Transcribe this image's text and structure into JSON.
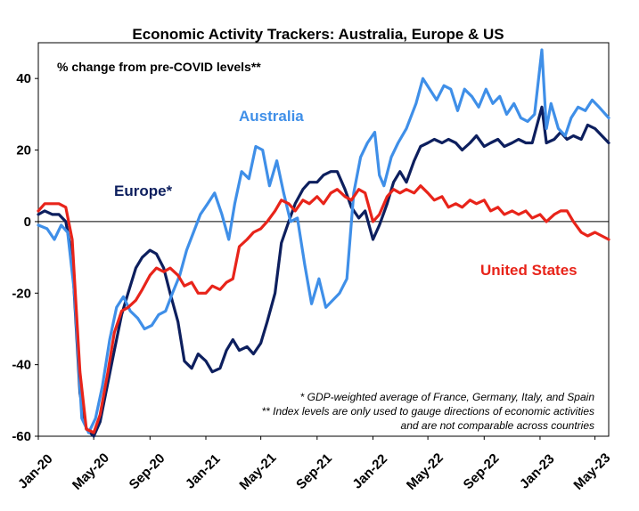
{
  "chart_data": {
    "type": "line",
    "title": "Economic Activity Trackers: Australia, Europe & US",
    "subtitle": "% change from pre-COVID levels**",
    "ylim": [
      -60,
      50
    ],
    "yticks": [
      "40",
      "20",
      "0",
      "-20",
      "-40",
      "-60"
    ],
    "ytick_values": [
      40,
      20,
      0,
      -20,
      -40,
      -60
    ],
    "xlim": [
      "2020-01-01",
      "2023-05-31"
    ],
    "xticks": [
      "Jan-20",
      "May-20",
      "Sep-20",
      "Jan-21",
      "May-21",
      "Sep-21",
      "Jan-22",
      "May-22",
      "Sep-22",
      "Jan-23",
      "May-23"
    ],
    "xtick_dates": [
      "2020-01-01",
      "2020-05-01",
      "2020-09-01",
      "2021-01-01",
      "2021-05-01",
      "2021-09-01",
      "2022-01-01",
      "2022-05-01",
      "2022-09-01",
      "2023-01-01",
      "2023-05-01"
    ],
    "grid": false,
    "notes": [
      "* GDP-weighted average of France, Germany, Italy, and Spain",
      "** Index levels are only used to gauge directions of economic activities",
      "and are not comparable across countries"
    ],
    "series": [
      {
        "name": "Australia",
        "color": "#3F8FE8",
        "points": [
          [
            "2020-01-01",
            -1
          ],
          [
            "2020-01-20",
            -2
          ],
          [
            "2020-02-05",
            -5
          ],
          [
            "2020-02-20",
            -1
          ],
          [
            "2020-03-05",
            -3
          ],
          [
            "2020-03-20",
            -20
          ],
          [
            "2020-04-05",
            -55
          ],
          [
            "2020-04-20",
            -59
          ],
          [
            "2020-05-05",
            -55
          ],
          [
            "2020-05-20",
            -46
          ],
          [
            "2020-06-05",
            -33
          ],
          [
            "2020-06-20",
            -24
          ],
          [
            "2020-07-05",
            -21
          ],
          [
            "2020-07-20",
            -25
          ],
          [
            "2020-08-05",
            -27
          ],
          [
            "2020-08-20",
            -30
          ],
          [
            "2020-09-05",
            -29
          ],
          [
            "2020-09-20",
            -26
          ],
          [
            "2020-10-05",
            -25
          ],
          [
            "2020-10-20",
            -20
          ],
          [
            "2020-11-05",
            -15
          ],
          [
            "2020-11-20",
            -8
          ],
          [
            "2020-12-05",
            -3
          ],
          [
            "2020-12-20",
            2
          ],
          [
            "2021-01-05",
            5
          ],
          [
            "2021-01-20",
            8
          ],
          [
            "2021-02-05",
            2
          ],
          [
            "2021-02-20",
            -5
          ],
          [
            "2021-03-05",
            5
          ],
          [
            "2021-03-20",
            14
          ],
          [
            "2021-04-05",
            12
          ],
          [
            "2021-04-20",
            21
          ],
          [
            "2021-05-05",
            20
          ],
          [
            "2021-05-20",
            10
          ],
          [
            "2021-06-05",
            17
          ],
          [
            "2021-06-20",
            8
          ],
          [
            "2021-07-05",
            0
          ],
          [
            "2021-07-20",
            1
          ],
          [
            "2021-08-05",
            -12
          ],
          [
            "2021-08-20",
            -23
          ],
          [
            "2021-09-05",
            -16
          ],
          [
            "2021-09-20",
            -24
          ],
          [
            "2021-10-05",
            -22
          ],
          [
            "2021-10-20",
            -20
          ],
          [
            "2021-11-05",
            -16
          ],
          [
            "2021-11-20",
            8
          ],
          [
            "2021-12-05",
            18
          ],
          [
            "2021-12-20",
            22
          ],
          [
            "2022-01-05",
            25
          ],
          [
            "2022-01-15",
            13
          ],
          [
            "2022-01-25",
            10
          ],
          [
            "2022-02-10",
            18
          ],
          [
            "2022-02-25",
            22
          ],
          [
            "2022-03-15",
            26
          ],
          [
            "2022-04-05",
            33
          ],
          [
            "2022-04-20",
            40
          ],
          [
            "2022-05-05",
            37
          ],
          [
            "2022-05-20",
            34
          ],
          [
            "2022-06-05",
            38
          ],
          [
            "2022-06-20",
            37
          ],
          [
            "2022-07-05",
            31
          ],
          [
            "2022-07-20",
            37
          ],
          [
            "2022-08-05",
            35
          ],
          [
            "2022-08-20",
            32
          ],
          [
            "2022-09-05",
            37
          ],
          [
            "2022-09-20",
            33
          ],
          [
            "2022-10-05",
            35
          ],
          [
            "2022-10-20",
            30
          ],
          [
            "2022-11-05",
            33
          ],
          [
            "2022-11-20",
            29
          ],
          [
            "2022-12-05",
            28
          ],
          [
            "2022-12-20",
            30
          ],
          [
            "2023-01-05",
            48
          ],
          [
            "2023-01-15",
            26
          ],
          [
            "2023-01-25",
            33
          ],
          [
            "2023-02-10",
            26
          ],
          [
            "2023-02-25",
            24
          ],
          [
            "2023-03-10",
            29
          ],
          [
            "2023-03-25",
            32
          ],
          [
            "2023-04-10",
            31
          ],
          [
            "2023-04-25",
            34
          ],
          [
            "2023-05-10",
            32
          ],
          [
            "2023-05-31",
            29
          ]
        ]
      },
      {
        "name": "Europe*",
        "color": "#0D1F5E",
        "points": [
          [
            "2020-01-01",
            2
          ],
          [
            "2020-01-15",
            3
          ],
          [
            "2020-02-01",
            2
          ],
          [
            "2020-02-15",
            2
          ],
          [
            "2020-03-01",
            0
          ],
          [
            "2020-03-15",
            -10
          ],
          [
            "2020-04-01",
            -48
          ],
          [
            "2020-04-15",
            -58
          ],
          [
            "2020-05-01",
            -60
          ],
          [
            "2020-05-15",
            -56
          ],
          [
            "2020-06-01",
            -45
          ],
          [
            "2020-06-15",
            -36
          ],
          [
            "2020-07-01",
            -26
          ],
          [
            "2020-07-15",
            -20
          ],
          [
            "2020-08-01",
            -13
          ],
          [
            "2020-08-15",
            -10
          ],
          [
            "2020-09-01",
            -8
          ],
          [
            "2020-09-15",
            -9
          ],
          [
            "2020-10-01",
            -13
          ],
          [
            "2020-10-15",
            -20
          ],
          [
            "2020-11-01",
            -28
          ],
          [
            "2020-11-15",
            -39
          ],
          [
            "2020-12-01",
            -41
          ],
          [
            "2020-12-15",
            -37
          ],
          [
            "2021-01-01",
            -39
          ],
          [
            "2021-01-15",
            -42
          ],
          [
            "2021-02-01",
            -41
          ],
          [
            "2021-02-15",
            -36
          ],
          [
            "2021-03-01",
            -33
          ],
          [
            "2021-03-15",
            -36
          ],
          [
            "2021-04-01",
            -35
          ],
          [
            "2021-04-15",
            -37
          ],
          [
            "2021-05-01",
            -34
          ],
          [
            "2021-05-15",
            -28
          ],
          [
            "2021-06-01",
            -20
          ],
          [
            "2021-06-15",
            -6
          ],
          [
            "2021-07-01",
            0
          ],
          [
            "2021-07-15",
            5
          ],
          [
            "2021-08-01",
            9
          ],
          [
            "2021-08-15",
            11
          ],
          [
            "2021-09-01",
            11
          ],
          [
            "2021-09-15",
            13
          ],
          [
            "2021-10-01",
            14
          ],
          [
            "2021-10-15",
            14
          ],
          [
            "2021-11-01",
            9
          ],
          [
            "2021-11-15",
            4
          ],
          [
            "2021-12-01",
            1
          ],
          [
            "2021-12-15",
            3
          ],
          [
            "2022-01-01",
            -5
          ],
          [
            "2022-01-15",
            -1
          ],
          [
            "2022-02-01",
            5
          ],
          [
            "2022-02-15",
            11
          ],
          [
            "2022-03-01",
            14
          ],
          [
            "2022-03-15",
            11
          ],
          [
            "2022-04-01",
            17
          ],
          [
            "2022-04-15",
            21
          ],
          [
            "2022-05-01",
            22
          ],
          [
            "2022-05-15",
            23
          ],
          [
            "2022-06-01",
            22
          ],
          [
            "2022-06-15",
            23
          ],
          [
            "2022-07-01",
            22
          ],
          [
            "2022-07-15",
            20
          ],
          [
            "2022-08-01",
            22
          ],
          [
            "2022-08-15",
            24
          ],
          [
            "2022-09-01",
            21
          ],
          [
            "2022-09-15",
            22
          ],
          [
            "2022-10-01",
            23
          ],
          [
            "2022-10-15",
            21
          ],
          [
            "2022-11-01",
            22
          ],
          [
            "2022-11-15",
            23
          ],
          [
            "2022-12-01",
            22
          ],
          [
            "2022-12-15",
            22
          ],
          [
            "2023-01-05",
            32
          ],
          [
            "2023-01-15",
            22
          ],
          [
            "2023-02-01",
            23
          ],
          [
            "2023-02-15",
            25
          ],
          [
            "2023-03-01",
            23
          ],
          [
            "2023-03-15",
            24
          ],
          [
            "2023-04-01",
            23
          ],
          [
            "2023-04-15",
            27
          ],
          [
            "2023-05-01",
            26
          ],
          [
            "2023-05-31",
            22
          ]
        ]
      },
      {
        "name": "United States",
        "color": "#E8241A",
        "points": [
          [
            "2020-01-01",
            3
          ],
          [
            "2020-01-15",
            5
          ],
          [
            "2020-02-01",
            5
          ],
          [
            "2020-02-15",
            5
          ],
          [
            "2020-03-01",
            4
          ],
          [
            "2020-03-15",
            -5
          ],
          [
            "2020-04-01",
            -42
          ],
          [
            "2020-04-15",
            -58
          ],
          [
            "2020-05-01",
            -59
          ],
          [
            "2020-05-15",
            -54
          ],
          [
            "2020-06-01",
            -42
          ],
          [
            "2020-06-15",
            -31
          ],
          [
            "2020-07-01",
            -25
          ],
          [
            "2020-07-15",
            -24
          ],
          [
            "2020-08-01",
            -22
          ],
          [
            "2020-08-15",
            -19
          ],
          [
            "2020-09-01",
            -15
          ],
          [
            "2020-09-15",
            -13
          ],
          [
            "2020-10-01",
            -14
          ],
          [
            "2020-10-15",
            -13
          ],
          [
            "2020-11-01",
            -15
          ],
          [
            "2020-11-15",
            -18
          ],
          [
            "2020-12-01",
            -17
          ],
          [
            "2020-12-15",
            -20
          ],
          [
            "2021-01-01",
            -20
          ],
          [
            "2021-01-15",
            -18
          ],
          [
            "2021-02-01",
            -19
          ],
          [
            "2021-02-15",
            -17
          ],
          [
            "2021-03-01",
            -16
          ],
          [
            "2021-03-15",
            -7
          ],
          [
            "2021-04-01",
            -5
          ],
          [
            "2021-04-15",
            -3
          ],
          [
            "2021-05-01",
            -2
          ],
          [
            "2021-05-15",
            0
          ],
          [
            "2021-06-01",
            3
          ],
          [
            "2021-06-15",
            6
          ],
          [
            "2021-07-01",
            5
          ],
          [
            "2021-07-15",
            3
          ],
          [
            "2021-08-01",
            6
          ],
          [
            "2021-08-15",
            5
          ],
          [
            "2021-09-01",
            7
          ],
          [
            "2021-09-15",
            5
          ],
          [
            "2021-10-01",
            8
          ],
          [
            "2021-10-15",
            9
          ],
          [
            "2021-11-01",
            7
          ],
          [
            "2021-11-15",
            6
          ],
          [
            "2021-12-01",
            9
          ],
          [
            "2021-12-15",
            8
          ],
          [
            "2022-01-01",
            0
          ],
          [
            "2022-01-15",
            2
          ],
          [
            "2022-02-01",
            7
          ],
          [
            "2022-02-15",
            9
          ],
          [
            "2022-03-01",
            8
          ],
          [
            "2022-03-15",
            9
          ],
          [
            "2022-04-01",
            8
          ],
          [
            "2022-04-15",
            10
          ],
          [
            "2022-05-01",
            8
          ],
          [
            "2022-05-15",
            6
          ],
          [
            "2022-06-01",
            7
          ],
          [
            "2022-06-15",
            4
          ],
          [
            "2022-07-01",
            5
          ],
          [
            "2022-07-15",
            4
          ],
          [
            "2022-08-01",
            6
          ],
          [
            "2022-08-15",
            5
          ],
          [
            "2022-09-01",
            6
          ],
          [
            "2022-09-15",
            3
          ],
          [
            "2022-10-01",
            4
          ],
          [
            "2022-10-15",
            2
          ],
          [
            "2022-11-01",
            3
          ],
          [
            "2022-11-15",
            2
          ],
          [
            "2022-12-01",
            3
          ],
          [
            "2022-12-15",
            1
          ],
          [
            "2023-01-01",
            2
          ],
          [
            "2023-01-15",
            0
          ],
          [
            "2023-02-01",
            2
          ],
          [
            "2023-02-15",
            3
          ],
          [
            "2023-03-01",
            3
          ],
          [
            "2023-03-15",
            0
          ],
          [
            "2023-04-01",
            -3
          ],
          [
            "2023-04-15",
            -4
          ],
          [
            "2023-05-01",
            -3
          ],
          [
            "2023-05-31",
            -5
          ]
        ]
      }
    ]
  }
}
